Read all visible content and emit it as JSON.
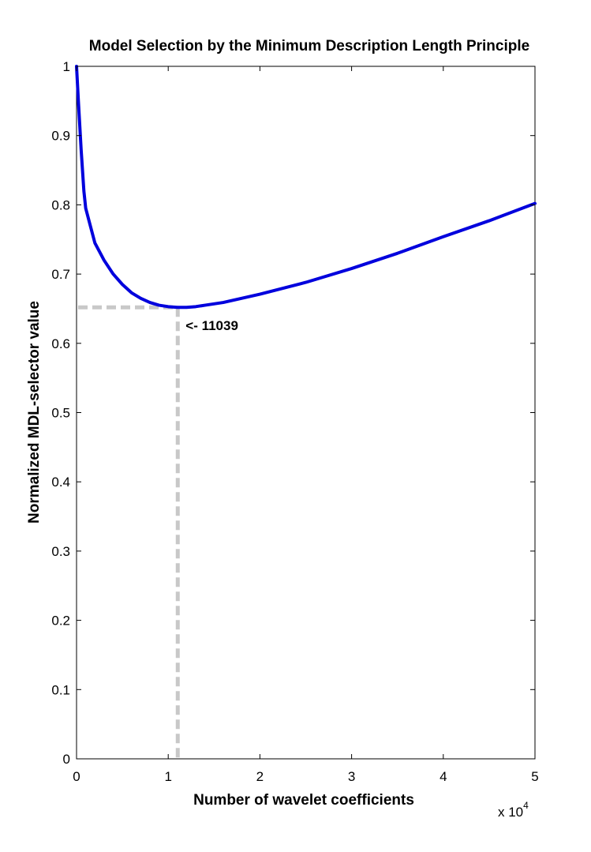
{
  "chart_data": {
    "type": "line",
    "title": "Model Selection by the Minimum Description Length Principle",
    "xlabel": "Number of wavelet coefficients",
    "ylabel": "Normalized MDL-selector value",
    "x_multiplier": {
      "base": "x 10",
      "exponent": "4"
    },
    "xlim": [
      0,
      5
    ],
    "ylim": [
      0,
      1
    ],
    "x_ticks": [
      0,
      1,
      2,
      3,
      4,
      5
    ],
    "x_tick_labels": [
      "0",
      "1",
      "2",
      "3",
      "4",
      "5"
    ],
    "y_ticks": [
      0,
      0.1,
      0.2,
      0.3,
      0.4,
      0.5,
      0.6,
      0.7,
      0.8,
      0.9,
      1
    ],
    "y_tick_labels": [
      "0",
      "0.1",
      "0.2",
      "0.3",
      "0.4",
      "0.5",
      "0.6",
      "0.7",
      "0.8",
      "0.9",
      "1"
    ],
    "grid": false,
    "series": [
      {
        "color": "#0000dd",
        "x": [
          0,
          0.02,
          0.05,
          0.08,
          0.1,
          0.15,
          0.2,
          0.3,
          0.4,
          0.5,
          0.6,
          0.7,
          0.8,
          0.9,
          1.0,
          1.1,
          1.2,
          1.3,
          1.4,
          1.5,
          1.6,
          1.7,
          1.8,
          1.9,
          2.0,
          2.5,
          3.0,
          3.5,
          4.0,
          4.5,
          5.0
        ],
        "y": [
          1.0,
          0.95,
          0.88,
          0.82,
          0.795,
          0.77,
          0.745,
          0.72,
          0.7,
          0.685,
          0.673,
          0.665,
          0.659,
          0.655,
          0.653,
          0.652,
          0.652,
          0.653,
          0.655,
          0.657,
          0.659,
          0.662,
          0.665,
          0.668,
          0.671,
          0.688,
          0.708,
          0.73,
          0.754,
          0.777,
          0.802
        ]
      }
    ],
    "reference_lines": {
      "color": "#c8c8c8",
      "x": 1.1039,
      "y": 0.652
    },
    "annotation": {
      "text": "<- 11039",
      "x": 1.1039,
      "y": 0.652
    }
  }
}
